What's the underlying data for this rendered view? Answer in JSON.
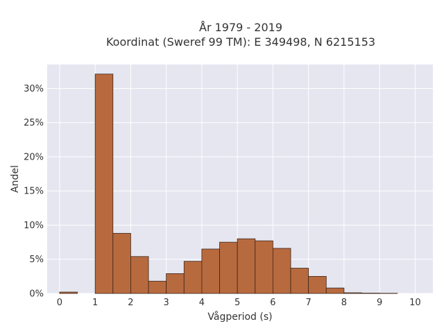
{
  "chart_data": {
    "type": "bar",
    "title_lines": [
      "År 1979 - 2019",
      "Koordinat (Sweref 99 TM): E 349498, N 6215153"
    ],
    "xlabel": "Vågperiod (s)",
    "ylabel": "Andel",
    "bin_width": 0.5,
    "bin_starts": [
      0,
      0.5,
      1,
      1.5,
      2,
      2.5,
      3,
      3.5,
      4,
      4.5,
      5,
      5.5,
      6,
      6.5,
      7,
      7.5,
      8,
      8.5,
      9,
      9.5
    ],
    "values": [
      0.2,
      0,
      32.1,
      8.8,
      5.4,
      1.8,
      2.9,
      4.7,
      6.5,
      7.5,
      8.0,
      7.7,
      6.6,
      3.7,
      2.5,
      0.8,
      0.1,
      0.05,
      0.03,
      0
    ],
    "xlim": [
      -0.35,
      10.5
    ],
    "ylim": [
      0,
      33.5
    ],
    "xticks": [
      0,
      1,
      2,
      3,
      4,
      5,
      6,
      7,
      8,
      9,
      10
    ],
    "xtick_labels": [
      "0",
      "1",
      "2",
      "3",
      "4",
      "5",
      "6",
      "7",
      "8",
      "9",
      "10"
    ],
    "yticks": [
      0,
      5,
      10,
      15,
      20,
      25,
      30
    ],
    "ytick_labels": [
      "0%",
      "5%",
      "10%",
      "15%",
      "20%",
      "25%",
      "30%"
    ],
    "grid": true,
    "colors": {
      "bar_fill": "#b86a3f",
      "bar_stroke": "#3a2418",
      "plot_bg": "#e5e6f0",
      "grid": "#ffffff"
    }
  }
}
